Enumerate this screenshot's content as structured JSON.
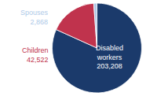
{
  "chart_data": {
    "type": "pie",
    "categories": [
      "Disabled\nworkers",
      "Children",
      "Spouses"
    ],
    "values": [
      203208,
      42522,
      2868
    ],
    "value_labels": [
      "203,208",
      "42,522",
      "2,868"
    ],
    "colors": [
      "#1b3a6b",
      "#c0334d",
      "#aec9e8"
    ],
    "data_labels": true
  }
}
